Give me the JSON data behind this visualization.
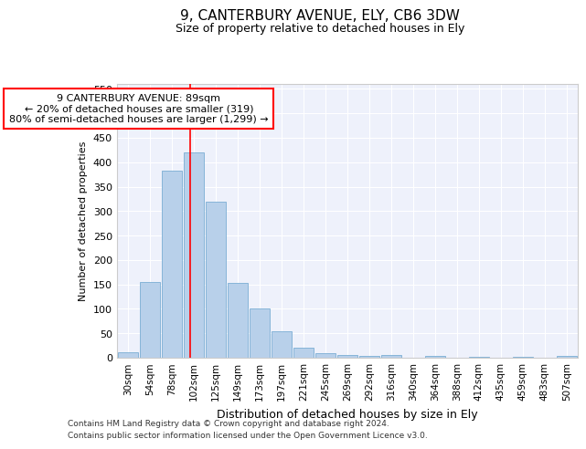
{
  "title": "9, CANTERBURY AVENUE, ELY, CB6 3DW",
  "subtitle": "Size of property relative to detached houses in Ely",
  "xlabel": "Distribution of detached houses by size in Ely",
  "ylabel": "Number of detached properties",
  "categories": [
    "30sqm",
    "54sqm",
    "78sqm",
    "102sqm",
    "125sqm",
    "149sqm",
    "173sqm",
    "197sqm",
    "221sqm",
    "245sqm",
    "269sqm",
    "292sqm",
    "316sqm",
    "340sqm",
    "364sqm",
    "388sqm",
    "412sqm",
    "435sqm",
    "459sqm",
    "483sqm",
    "507sqm"
  ],
  "values": [
    12,
    155,
    382,
    420,
    320,
    153,
    100,
    55,
    20,
    10,
    5,
    3,
    5,
    0,
    3,
    0,
    1,
    0,
    1,
    0,
    3
  ],
  "bar_color": "#b8d0ea",
  "bar_edgecolor": "#7aadd4",
  "red_line_x": 2.85,
  "annotation_line1": "9 CANTERBURY AVENUE: 89sqm",
  "annotation_line2": "← 20% of detached houses are smaller (319)",
  "annotation_line3": "80% of semi-detached houses are larger (1,299) →",
  "ylim": [
    0,
    560
  ],
  "yticks": [
    0,
    50,
    100,
    150,
    200,
    250,
    300,
    350,
    400,
    450,
    500,
    550
  ],
  "bg_color": "#eef1fb",
  "footer1": "Contains HM Land Registry data © Crown copyright and database right 2024.",
  "footer2": "Contains public sector information licensed under the Open Government Licence v3.0."
}
